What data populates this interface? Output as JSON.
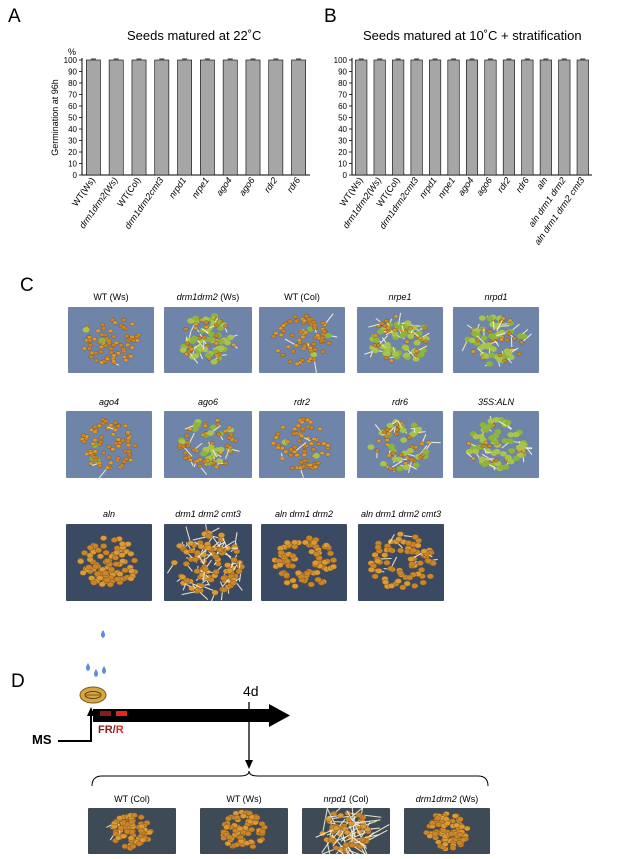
{
  "panels": {
    "a": "A",
    "b": "B",
    "c": "C",
    "d": "D"
  },
  "chart_data": [
    {
      "type": "bar",
      "title": "Seeds matured at 22˚C",
      "ylabel": "Germination at 96h",
      "unit": "%",
      "ylim": [
        0,
        100
      ],
      "yticks": [
        0,
        10,
        20,
        30,
        40,
        50,
        60,
        70,
        80,
        90,
        100
      ],
      "categories": [
        "WT(Ws)",
        "drm1drm2(Ws)",
        "WT(Col)",
        "drm1drm2cmt3",
        "nrpd1",
        "nrpe1",
        "ago4",
        "ago6",
        "rdr2",
        "rdr6"
      ],
      "italic": [
        false,
        true,
        false,
        true,
        true,
        true,
        true,
        true,
        true,
        true
      ],
      "values": [
        100,
        100,
        100,
        100,
        100,
        100,
        100,
        100,
        100,
        100
      ],
      "bar_color": "#a6a6a6"
    },
    {
      "type": "bar",
      "title": "Seeds matured at 10˚C + stratification",
      "ylabel": "",
      "unit": "",
      "ylim": [
        0,
        100
      ],
      "yticks": [
        0,
        10,
        20,
        30,
        40,
        50,
        60,
        70,
        80,
        90,
        100
      ],
      "categories": [
        "WT(Ws)",
        "drm1drm2(Ws)",
        "WT(Col)",
        "drm1drm2cmt3",
        "nrpd1",
        "nrpe1",
        "ago4",
        "ago6",
        "rdr2",
        "rdr6",
        "aln",
        "aln drm1 drm2",
        "aln drm1 drm2 cmt3"
      ],
      "italic": [
        false,
        true,
        false,
        true,
        true,
        true,
        true,
        true,
        true,
        true,
        true,
        true,
        true
      ],
      "values": [
        100,
        100,
        100,
        100,
        100,
        100,
        100,
        100,
        100,
        100,
        100,
        100,
        100
      ],
      "bar_color": "#a6a6a6"
    }
  ],
  "panel_c": {
    "row1": [
      {
        "pre": "WT (Ws)",
        "it": "",
        "post": ""
      },
      {
        "pre": "",
        "it": "drm1drm2",
        "post": " (Ws)"
      },
      {
        "pre": "WT (Col)",
        "it": "",
        "post": ""
      },
      {
        "pre": "",
        "it": "nrpe1",
        "post": ""
      },
      {
        "pre": "",
        "it": "nrpd1",
        "post": ""
      }
    ],
    "row2": [
      {
        "pre": "",
        "it": "ago4",
        "post": ""
      },
      {
        "pre": "",
        "it": "ago6",
        "post": ""
      },
      {
        "pre": "",
        "it": "rdr2",
        "post": ""
      },
      {
        "pre": "",
        "it": "rdr6",
        "post": ""
      },
      {
        "pre": "",
        "it": "35S:ALN",
        "post": ""
      }
    ],
    "row3": [
      {
        "pre": "",
        "it": "aln",
        "post": ""
      },
      {
        "pre": "",
        "it": "drm1 drm2 cmt3",
        "post": ""
      },
      {
        "pre": "",
        "it": "aln drm1 drm2",
        "post": ""
      },
      {
        "pre": "",
        "it": "aln drm1 drm2 cmt3",
        "post": ""
      }
    ]
  },
  "panel_d": {
    "day_label": "4d",
    "ms_label": "MS",
    "fr_label": "FR",
    "slash": "/",
    "r_label": "R",
    "fr_color": "#8b1a1a",
    "r_color": "#e0281f",
    "drop_color": "#5b8fd6",
    "labels": [
      {
        "pre": "WT (Col)",
        "it": "",
        "post": ""
      },
      {
        "pre": "WT (Ws)",
        "it": "",
        "post": ""
      },
      {
        "pre": "",
        "it": "nrpd1",
        "post": " (Col)"
      },
      {
        "pre": "",
        "it": "drm1drm2",
        "post": " (Ws)"
      }
    ]
  }
}
